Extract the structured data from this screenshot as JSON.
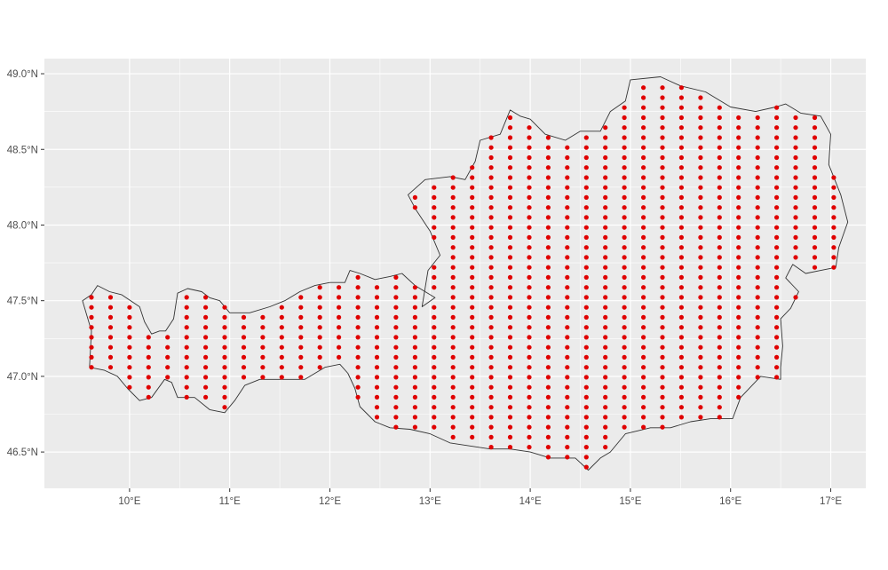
{
  "map": {
    "panel_background": "#ebebeb",
    "grid_color": "#ffffff",
    "outline_color": "#333333",
    "point_color": "#e00000",
    "x_ticks": [
      {
        "value": 10,
        "label": "10°E"
      },
      {
        "value": 11,
        "label": "11°E"
      },
      {
        "value": 12,
        "label": "12°E"
      },
      {
        "value": 13,
        "label": "13°E"
      },
      {
        "value": 14,
        "label": "14°E"
      },
      {
        "value": 15,
        "label": "15°E"
      },
      {
        "value": 16,
        "label": "16°E"
      },
      {
        "value": 17,
        "label": "17°E"
      }
    ],
    "y_ticks": [
      {
        "value": 46.5,
        "label": "46.5°N"
      },
      {
        "value": 47.0,
        "label": "47.0°N"
      },
      {
        "value": 47.5,
        "label": "47.5°N"
      },
      {
        "value": 48.0,
        "label": "48.0°N"
      },
      {
        "value": 48.5,
        "label": "48.5°N"
      },
      {
        "value": 49.0,
        "label": "49.0°N"
      }
    ],
    "x_range": [
      9.15,
      17.35
    ],
    "y_range": [
      46.26,
      49.1
    ],
    "grid_spacing": {
      "lon": 0.19,
      "lat": 0.066
    },
    "outline": [
      [
        9.53,
        47.5
      ],
      [
        9.62,
        47.54
      ],
      [
        9.68,
        47.6
      ],
      [
        9.8,
        47.56
      ],
      [
        9.92,
        47.54
      ],
      [
        10.1,
        47.46
      ],
      [
        10.15,
        47.36
      ],
      [
        10.22,
        47.28
      ],
      [
        10.3,
        47.3
      ],
      [
        10.36,
        47.3
      ],
      [
        10.44,
        47.38
      ],
      [
        10.48,
        47.55
      ],
      [
        10.58,
        47.58
      ],
      [
        10.72,
        47.56
      ],
      [
        10.8,
        47.52
      ],
      [
        10.9,
        47.5
      ],
      [
        11.0,
        47.42
      ],
      [
        11.2,
        47.42
      ],
      [
        11.4,
        47.46
      ],
      [
        11.55,
        47.5
      ],
      [
        11.7,
        47.56
      ],
      [
        11.85,
        47.6
      ],
      [
        12.0,
        47.62
      ],
      [
        12.15,
        47.62
      ],
      [
        12.2,
        47.7
      ],
      [
        12.3,
        47.68
      ],
      [
        12.45,
        47.64
      ],
      [
        12.6,
        47.66
      ],
      [
        12.72,
        47.68
      ],
      [
        12.85,
        47.6
      ],
      [
        13.05,
        47.52
      ],
      [
        12.92,
        47.46
      ],
      [
        12.98,
        47.7
      ],
      [
        13.1,
        47.8
      ],
      [
        13.0,
        47.96
      ],
      [
        12.86,
        48.1
      ],
      [
        12.78,
        48.2
      ],
      [
        12.95,
        48.3
      ],
      [
        13.2,
        48.32
      ],
      [
        13.35,
        48.3
      ],
      [
        13.45,
        48.42
      ],
      [
        13.5,
        48.56
      ],
      [
        13.7,
        48.6
      ],
      [
        13.8,
        48.76
      ],
      [
        13.9,
        48.72
      ],
      [
        14.0,
        48.7
      ],
      [
        14.15,
        48.6
      ],
      [
        14.35,
        48.56
      ],
      [
        14.5,
        48.62
      ],
      [
        14.7,
        48.62
      ],
      [
        14.8,
        48.75
      ],
      [
        14.95,
        48.82
      ],
      [
        15.0,
        48.96
      ],
      [
        15.3,
        48.98
      ],
      [
        15.5,
        48.92
      ],
      [
        15.75,
        48.88
      ],
      [
        16.0,
        48.78
      ],
      [
        16.25,
        48.75
      ],
      [
        16.45,
        48.78
      ],
      [
        16.55,
        48.8
      ],
      [
        16.7,
        48.74
      ],
      [
        16.9,
        48.72
      ],
      [
        17.0,
        48.6
      ],
      [
        16.98,
        48.4
      ],
      [
        17.1,
        48.2
      ],
      [
        17.17,
        48.02
      ],
      [
        17.08,
        47.85
      ],
      [
        17.05,
        47.72
      ],
      [
        16.9,
        47.7
      ],
      [
        16.75,
        47.68
      ],
      [
        16.62,
        47.74
      ],
      [
        16.55,
        47.65
      ],
      [
        16.68,
        47.56
      ],
      [
        16.6,
        47.45
      ],
      [
        16.5,
        47.38
      ],
      [
        16.52,
        47.2
      ],
      [
        16.5,
        47.06
      ],
      [
        16.5,
        46.98
      ],
      [
        16.3,
        47.0
      ],
      [
        16.1,
        46.86
      ],
      [
        16.02,
        46.72
      ],
      [
        15.8,
        46.72
      ],
      [
        15.6,
        46.7
      ],
      [
        15.4,
        46.66
      ],
      [
        15.2,
        46.66
      ],
      [
        14.95,
        46.62
      ],
      [
        14.8,
        46.5
      ],
      [
        14.7,
        46.46
      ],
      [
        14.58,
        46.38
      ],
      [
        14.45,
        46.46
      ],
      [
        14.2,
        46.46
      ],
      [
        14.0,
        46.5
      ],
      [
        13.8,
        46.52
      ],
      [
        13.6,
        46.52
      ],
      [
        13.4,
        46.54
      ],
      [
        13.2,
        46.56
      ],
      [
        13.0,
        46.62
      ],
      [
        12.8,
        46.65
      ],
      [
        12.6,
        46.66
      ],
      [
        12.45,
        46.7
      ],
      [
        12.3,
        46.8
      ],
      [
        12.25,
        46.92
      ],
      [
        12.18,
        47.02
      ],
      [
        12.1,
        47.08
      ],
      [
        11.95,
        47.06
      ],
      [
        11.75,
        46.98
      ],
      [
        11.5,
        46.98
      ],
      [
        11.3,
        46.98
      ],
      [
        11.15,
        46.94
      ],
      [
        11.05,
        46.84
      ],
      [
        10.95,
        46.76
      ],
      [
        10.8,
        46.78
      ],
      [
        10.65,
        46.86
      ],
      [
        10.48,
        46.86
      ],
      [
        10.42,
        46.96
      ],
      [
        10.35,
        46.98
      ],
      [
        10.22,
        46.86
      ],
      [
        10.1,
        46.84
      ],
      [
        9.98,
        46.92
      ],
      [
        9.88,
        47.0
      ],
      [
        9.75,
        47.04
      ],
      [
        9.6,
        47.06
      ],
      [
        9.62,
        47.3
      ],
      [
        9.53,
        47.5
      ]
    ]
  }
}
